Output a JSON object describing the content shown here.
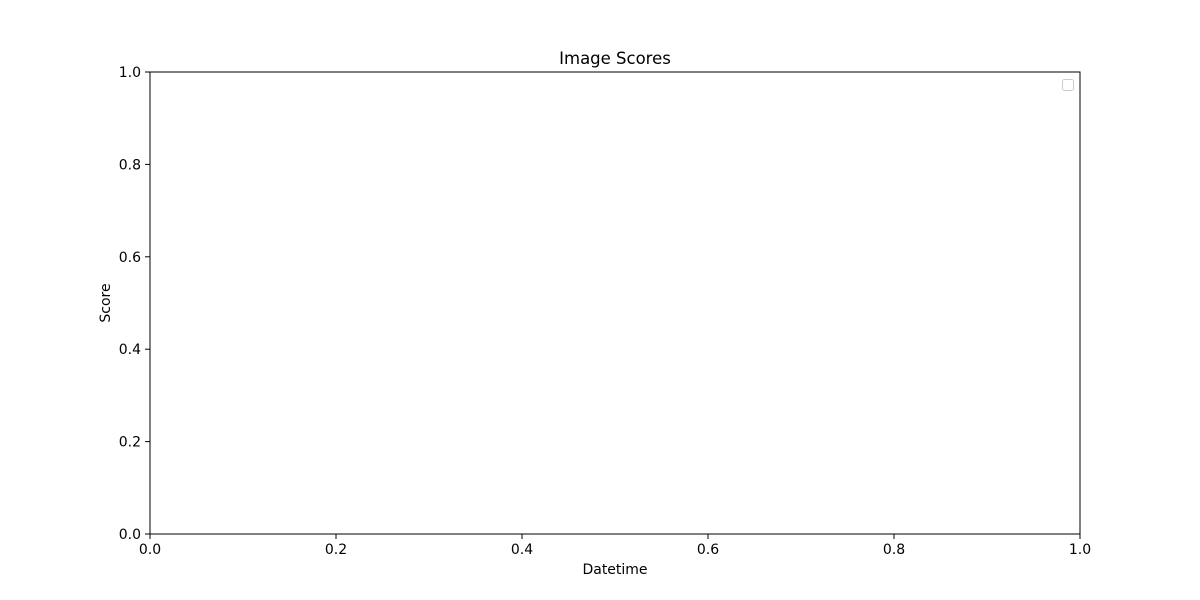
{
  "chart_data": {
    "type": "line",
    "title": "Image Scores",
    "xlabel": "Datetime",
    "ylabel": "Score",
    "xlim": [
      0.0,
      1.0
    ],
    "ylim": [
      0.0,
      1.0
    ],
    "x_ticks": [
      "0.0",
      "0.2",
      "0.4",
      "0.6",
      "0.8",
      "1.0"
    ],
    "y_ticks": [
      "0.0",
      "0.2",
      "0.4",
      "0.6",
      "0.8",
      "1.0"
    ],
    "series": [],
    "grid": false,
    "legend": {
      "placement": "top-right",
      "entries": []
    }
  }
}
